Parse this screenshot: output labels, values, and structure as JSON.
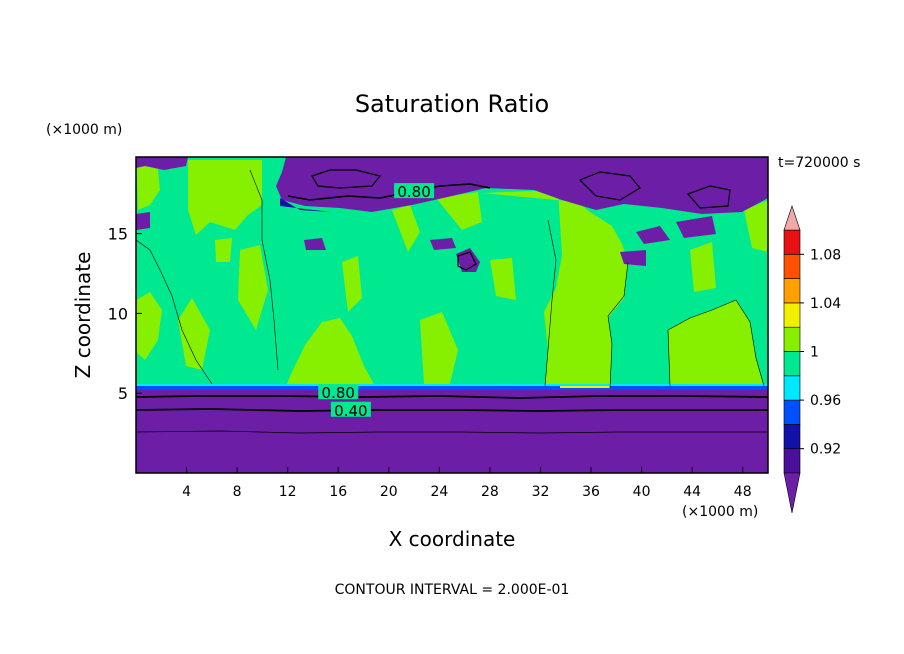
{
  "chart_data": {
    "type": "heatmap",
    "title": "Saturation Ratio",
    "xlabel": "X coordinate",
    "ylabel": "Z coordinate",
    "x_unit": "(×1000 m)",
    "y_unit": "(×1000 m)",
    "time_label": "t=720000 s",
    "footer": "CONTOUR INTERVAL = 2.000E-01",
    "xlim": [
      0,
      50
    ],
    "ylim": [
      0,
      19.8
    ],
    "x_ticks": [
      4,
      8,
      12,
      16,
      20,
      24,
      28,
      32,
      36,
      40,
      44,
      48
    ],
    "y_ticks": [
      5,
      10,
      15
    ],
    "colorbar": {
      "levels": [
        0.9,
        0.92,
        0.94,
        0.96,
        0.98,
        1.0,
        1.02,
        1.04,
        1.06,
        1.08,
        1.1
      ],
      "colors": [
        "#4b0f9c",
        "#1212a8",
        "#0050ff",
        "#00e8ff",
        "#00e890",
        "#86f000",
        "#f0f000",
        "#ffa000",
        "#ff5000",
        "#e81010"
      ],
      "under_color": "#6c1fa6",
      "over_color": "#f2a8a8",
      "tick_labels": [
        "0.92",
        "0.96",
        "1",
        "1.04",
        "1.08"
      ],
      "tick_values": [
        0.92,
        0.96,
        1.0,
        1.04,
        1.08
      ]
    },
    "contour_labels": [
      {
        "text": "0.80",
        "x": 22,
        "z": 17.6
      },
      {
        "text": "0.80",
        "x": 16,
        "z": 5.0
      },
      {
        "text": "0.40",
        "x": 17,
        "z": 3.9
      }
    ]
  }
}
